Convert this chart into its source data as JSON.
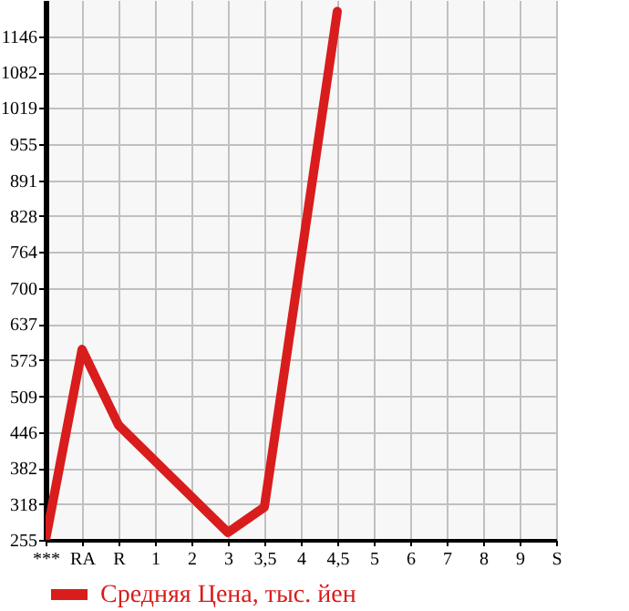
{
  "chart_data": {
    "type": "line",
    "categories": [
      "***",
      "RA",
      "R",
      "1",
      "2",
      "3",
      "3,5",
      "4",
      "4,5",
      "5",
      "6",
      "7",
      "8",
      "9",
      "S"
    ],
    "series": [
      {
        "name": "Средняя Цена, тыс. йен",
        "color": "#d91c1c",
        "values": [
          255,
          592,
          458,
          null,
          null,
          268,
          313,
          null,
          1190,
          null,
          null,
          null,
          null,
          null,
          null
        ]
      }
    ],
    "ylim": [
      255,
      1210
    ],
    "yticks": [
      255,
      318,
      382,
      446,
      509,
      573,
      637,
      700,
      764,
      828,
      891,
      955,
      1019,
      1082,
      1146
    ],
    "grid": true,
    "legend": "bottom left",
    "marker": "none",
    "line_style": "solid"
  }
}
